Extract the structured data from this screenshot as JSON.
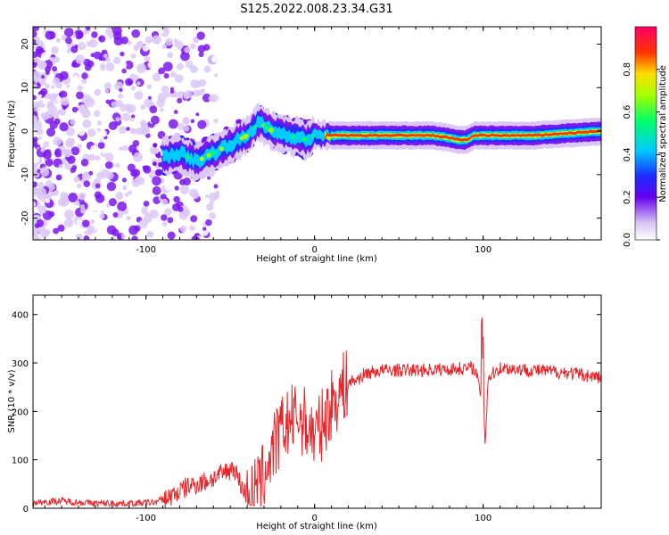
{
  "figure": {
    "title": "S125.2022.008.23.34.G31"
  },
  "chart_data": [
    {
      "type": "heatmap",
      "panel": "top",
      "xlabel": "Height of straight line (km)",
      "ylabel": "Frequency (Hz)",
      "xlim": [
        -167,
        170
      ],
      "ylim": [
        -25,
        24
      ],
      "xticks": [
        -100,
        0,
        100
      ],
      "xtick_labels": [
        "-100",
        "0",
        "100"
      ],
      "yticks": [
        -20,
        -10,
        0,
        10,
        20
      ],
      "ytick_labels": [
        "-20",
        "-10",
        "0",
        "10",
        "20"
      ],
      "ridge": {
        "x": [
          -90,
          -80,
          -70,
          -60,
          -50,
          -40,
          -33,
          -25,
          -15,
          -5,
          0,
          10,
          40,
          70,
          80,
          85,
          90,
          95,
          105,
          130,
          170
        ],
        "freq": [
          -6,
          -5,
          -7,
          -5,
          -3,
          -1,
          2,
          0,
          -1,
          -2,
          -1,
          -1,
          -1,
          -1,
          -1.5,
          -2,
          -2,
          -1,
          -1,
          -1,
          0
        ]
      },
      "colorbar": {
        "label": "Normalized spectral amplitude",
        "range": [
          0,
          1
        ],
        "ticks": [
          0.0,
          0.2,
          0.4,
          0.6,
          0.8
        ],
        "tick_labels": [
          "0.0",
          "0.2",
          "0.4",
          "0.6",
          "0.8"
        ]
      }
    },
    {
      "type": "line",
      "panel": "bottom",
      "xlabel": "Height of straight line (km)",
      "ylabel": "SNR (10 * v/v)",
      "xlim": [
        -167,
        170
      ],
      "ylim": [
        0,
        440
      ],
      "xticks": [
        -100,
        0,
        100
      ],
      "xtick_labels": [
        "-100",
        "0",
        "100"
      ],
      "yticks": [
        0,
        100,
        200,
        300,
        400
      ],
      "ytick_labels": [
        "0",
        "100",
        "200",
        "300",
        "400"
      ],
      "color": "#e8262a",
      "series": [
        {
          "name": "SNR",
          "x": [
            -167,
            -150,
            -130,
            -110,
            -95,
            -85,
            -75,
            -65,
            -55,
            -48,
            -42,
            -38,
            -32,
            -25,
            -18,
            -10,
            -5,
            0,
            5,
            10,
            15,
            20,
            25,
            30,
            40,
            60,
            80,
            95,
            99,
            100,
            101,
            103,
            110,
            130,
            150,
            170
          ],
          "values": [
            12,
            15,
            10,
            10,
            12,
            25,
            45,
            55,
            70,
            85,
            35,
            20,
            50,
            120,
            170,
            190,
            175,
            150,
            175,
            215,
            240,
            260,
            265,
            278,
            285,
            285,
            287,
            290,
            230,
            380,
            120,
            270,
            290,
            285,
            280,
            270
          ]
        }
      ]
    }
  ]
}
